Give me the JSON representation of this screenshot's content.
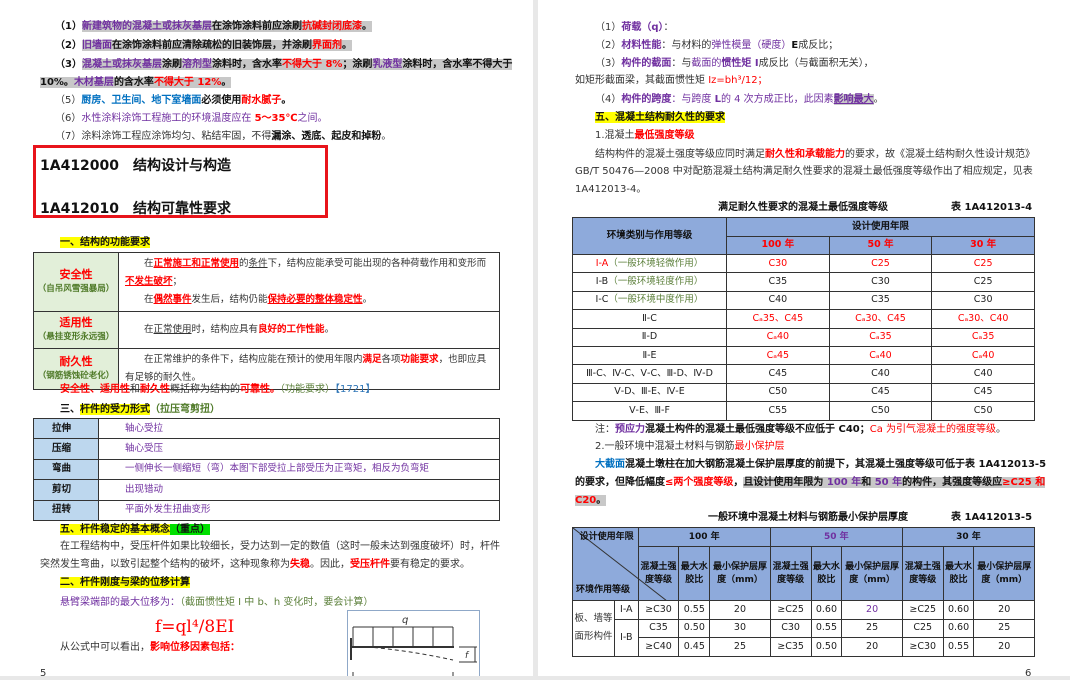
{
  "left": {
    "lines": [
      [
        {
          "t": "（1）",
          "s": "k"
        },
        {
          "t": "新建筑物的混凝土或抹灰基层",
          "s": "p hl"
        },
        {
          "t": "在涂饰涂料前应涂刷",
          "s": "k hl"
        },
        {
          "t": "抗碱封闭底漆",
          "s": "r hl"
        },
        {
          "t": "。",
          "s": "k hl"
        }
      ],
      [
        {
          "t": "（2）",
          "s": "k"
        },
        {
          "t": "旧墙面",
          "s": "p hl"
        },
        {
          "t": "在涂饰涂料前应清除疏松的旧装饰层，并涂刷",
          "s": "k hl"
        },
        {
          "t": "界面剂",
          "s": "r hl"
        },
        {
          "t": "。",
          "s": "k hl"
        }
      ],
      [
        {
          "t": "（3）",
          "s": "k"
        },
        {
          "t": "混凝土或抹灰基层",
          "s": "p hl"
        },
        {
          "t": "涂刷",
          "s": "k hl"
        },
        {
          "t": "溶剂型",
          "s": "p hl"
        },
        {
          "t": "涂料时，含水率",
          "s": "k hl"
        },
        {
          "t": "不得大于 8%",
          "s": "r hl"
        },
        {
          "t": "；涂刷",
          "s": "k hl"
        },
        {
          "t": "乳液型",
          "s": "p hl"
        },
        {
          "t": "涂料时，含水率不得大于",
          "s": "k hl"
        }
      ],
      [
        {
          "t": "10%。",
          "s": "k hl"
        },
        {
          "t": "木材基层",
          "s": "p hl"
        },
        {
          "t": "的含水率",
          "s": "k hl"
        },
        {
          "t": "不得大于 12%",
          "s": "r hl"
        },
        {
          "t": "。",
          "s": "k hl"
        }
      ],
      [
        {
          "t": "（5）",
          "s": "n"
        },
        {
          "t": "厨房、卫生间、地下室墙面",
          "s": "bl"
        },
        {
          "t": "必须使用",
          "s": "k"
        },
        {
          "t": "耐水腻子",
          "s": "r"
        },
        {
          "t": "。",
          "s": "k"
        }
      ],
      [
        {
          "t": "（6）",
          "s": "n"
        },
        {
          "t": "水性涂料涂饰工程施工的环境温度应在 ",
          "s": "pp"
        },
        {
          "t": "5～35℃",
          "s": "r"
        },
        {
          "t": "之间。",
          "s": "pp"
        }
      ],
      [
        {
          "t": "（7）涂料涂饰工程应涂饰均匀、粘结牢固，不得",
          "s": "n"
        },
        {
          "t": "漏涂、透底、起皮和掉粉",
          "s": "k"
        },
        {
          "t": "。",
          "s": "n"
        }
      ]
    ],
    "heading1": "1A412000　结构设计与构造",
    "heading2": "1A412010　结构可靠性要求",
    "sec1": [
      {
        "t": "一、结构的功能要求",
        "s": "k y"
      }
    ],
    "table1": [
      {
        "label": "安全性",
        "sub": "（自吊风雪强暴局）",
        "content": [
          {
            "t": "　　在",
            "s": "n"
          },
          {
            "t": "正常施工和正常使用",
            "s": "r u"
          },
          {
            "t": "的",
            "s": "n"
          },
          {
            "t": "条件",
            "s": "n u"
          },
          {
            "t": "下，结构应能承受可能出现的各种荷载作用和变形而",
            "s": "n"
          },
          {
            "t": "不发生破坏",
            "s": "r u"
          },
          {
            "t": "；",
            "s": "n"
          },
          {
            "t": "\n　　在",
            "s": "n"
          },
          {
            "t": "偶然事件",
            "s": "r u"
          },
          {
            "t": "发生后，结构仍能",
            "s": "n"
          },
          {
            "t": "保持必要的整体稳定性",
            "s": "r u"
          },
          {
            "t": "。",
            "s": "n"
          }
        ]
      },
      {
        "label": "适用性",
        "sub": "（悬挂变形永远强）",
        "content": [
          {
            "t": "　　在",
            "s": "n"
          },
          {
            "t": "正常使用",
            "s": "n u"
          },
          {
            "t": "时，结构应具有",
            "s": "n"
          },
          {
            "t": "良好的工作性能",
            "s": "r"
          },
          {
            "t": "。",
            "s": "n"
          }
        ]
      },
      {
        "label": "耐久性",
        "sub": "（钢筋锈蚀砼老化）",
        "content": [
          {
            "t": "　　在正常维护的条件下，结构应能在预计的使用年限内",
            "s": "n"
          },
          {
            "t": "满足",
            "s": "r"
          },
          {
            "t": "各项",
            "s": "n"
          },
          {
            "t": "功能要求",
            "s": "r"
          },
          {
            "t": "，也即应具有足够的耐久性。",
            "s": "n"
          }
        ]
      }
    ],
    "summary": [
      {
        "t": "安全性、适用性",
        "s": "r"
      },
      {
        "t": "和",
        "s": "n"
      },
      {
        "t": "耐久性",
        "s": "r"
      },
      {
        "t": "概括称为结构的",
        "s": "n"
      },
      {
        "t": "可靠性。",
        "s": "r"
      },
      {
        "t": "（功能要求）",
        "s": "g"
      },
      {
        "t": "【1721】",
        "s": "blp"
      }
    ],
    "sec3": [
      {
        "t": "三、",
        "s": "k"
      },
      {
        "t": "杆件的受力形式",
        "s": "k y"
      },
      {
        "t": "（拉压弯剪扭）",
        "s": "gb"
      }
    ],
    "table2": [
      {
        "label": "拉伸",
        "content": "轴心受拉"
      },
      {
        "label": "压缩",
        "content": "轴心受压"
      },
      {
        "label": "弯曲",
        "content": "一侧伸长一侧缩短（弯）本图下部受拉上部受压为正弯矩，相反为负弯矩"
      },
      {
        "label": "剪切",
        "content": "出现错动"
      },
      {
        "label": "扭转",
        "content": "平面外发生扭曲变形"
      }
    ],
    "sec5": [
      {
        "t": "五、杆件稳定的基本概念",
        "s": "k y"
      },
      {
        "t": "（重点）",
        "s": "k gr"
      }
    ],
    "para1": [
      {
        "t": "在工程结构中，受压杆件如果比较细长，受力达到一定的数值（这时一般未达到强度破坏）时，杆件",
        "s": "n"
      }
    ],
    "para2": [
      {
        "t": "突然发生弯曲，以致引起整个结构的破坏，这种现象称为",
        "s": "n"
      },
      {
        "t": "失稳",
        "s": "r"
      },
      {
        "t": "。因此，",
        "s": "n"
      },
      {
        "t": "受压杆件",
        "s": "r"
      },
      {
        "t": "要有稳定的要求。",
        "s": "n"
      }
    ],
    "sec2": [
      {
        "t": "二、杆件刚度与梁的位移计算",
        "s": "k y"
      }
    ],
    "beam": [
      {
        "t": "悬臂梁端部的最大位移为：",
        "s": "pp"
      },
      {
        "t": "（截面惯性矩 I 中 b、h 变化时，要会计算）",
        "s": "g"
      }
    ],
    "formula": "f=ql⁴/8EI",
    "conclusion": [
      {
        "t": "从公式中可以看出，",
        "s": "n"
      },
      {
        "t": "影响位移因素包括：",
        "s": "r"
      }
    ],
    "diagram": {
      "load_label": "q",
      "deflection_label": "f"
    },
    "page_number": "5"
  },
  "right": {
    "lines": [
      [
        {
          "t": "（1）",
          "s": "n"
        },
        {
          "t": "荷载（q）",
          "s": "p"
        },
        {
          "t": "：",
          "s": "n"
        }
      ],
      [
        {
          "t": "（2）",
          "s": "n"
        },
        {
          "t": "材料性能",
          "s": "p"
        },
        {
          "t": "：与材料的",
          "s": "n"
        },
        {
          "t": "弹性模量（硬度）",
          "s": "pp"
        },
        {
          "t": "E",
          "s": "k"
        },
        {
          "t": "成反比；",
          "s": "n"
        }
      ],
      [
        {
          "t": "（3）",
          "s": "n"
        },
        {
          "t": "构件的截面",
          "s": "p"
        },
        {
          "t": "：与",
          "s": "n"
        },
        {
          "t": "截面的",
          "s": "pp"
        },
        {
          "t": "惯性矩 I",
          "s": "p"
        },
        {
          "t": "成反比（与截面积无关），",
          "s": "n"
        }
      ],
      [
        {
          "t": "如矩形截面梁，其截面惯性矩 ",
          "s": "n"
        },
        {
          "t": "Iz=bh³/12；",
          "s": "rp"
        }
      ],
      [
        {
          "t": "（4）",
          "s": "n"
        },
        {
          "t": "构件的跨度",
          "s": "p"
        },
        {
          "t": "：与跨度 ",
          "s": "pp"
        },
        {
          "t": "L",
          "s": "p"
        },
        {
          "t": "的 4 次方成正比，此因素",
          "s": "pp"
        },
        {
          "t": "影响最大",
          "s": "p hl u"
        },
        {
          "t": "。",
          "s": "n"
        }
      ],
      [
        {
          "t": "五、混凝土结构耐久性的要求",
          "s": "k y"
        }
      ],
      [
        {
          "t": "1.混凝土",
          "s": "n"
        },
        {
          "t": "最低强度等级",
          "s": "r"
        }
      ],
      [
        {
          "t": "结构构件的混凝土强度等级应同时满足",
          "s": "n"
        },
        {
          "t": "耐久性和承载能力",
          "s": "r"
        },
        {
          "t": "的要求，故《混凝土结构耐久性设计规范》",
          "s": "n"
        }
      ],
      [
        {
          "t": "GB/T 50476—2008 中对配筋混凝土结构满足耐久性要求的混凝土最低强度等级作出了相应规定，见表",
          "s": "n"
        }
      ],
      [
        {
          "t": "1A412013-4。",
          "s": "n"
        }
      ]
    ],
    "table3": {
      "title": "满足耐久性要求的混凝土最低强度等级",
      "number": "表 1A412013-4",
      "col0": "环境类别与作用等级",
      "group": "设计使用年限",
      "years": [
        "100 年",
        "50 年",
        "30 年"
      ],
      "rows": [
        {
          "env": "Ⅰ-A",
          "note": "（一般环境轻微作用）",
          "vals": [
            "C30",
            "C25",
            "C25"
          ],
          "red": true,
          "envred": true
        },
        {
          "env": "Ⅰ-B",
          "note": "（一般环境轻度作用）",
          "vals": [
            "C35",
            "C30",
            "C25"
          ],
          "red": false
        },
        {
          "env": "Ⅰ-C",
          "note": "（一般环境中度作用）",
          "vals": [
            "C40",
            "C35",
            "C30"
          ],
          "red": false
        },
        {
          "env": "Ⅱ-C",
          "note": "",
          "vals": [
            "Cₐ35、C45",
            "Cₐ30、C45",
            "Cₐ30、C40"
          ],
          "red": true
        },
        {
          "env": "Ⅱ-D",
          "note": "",
          "vals": [
            "Cₐ40",
            "Cₐ35",
            "Cₐ35"
          ],
          "red": true
        },
        {
          "env": "Ⅱ-E",
          "note": "",
          "vals": [
            "Cₐ45",
            "Cₐ40",
            "Cₐ40"
          ],
          "red": true
        },
        {
          "env": "Ⅲ-C、Ⅳ-C、Ⅴ-C、Ⅲ-D、Ⅳ-D",
          "note": "",
          "vals": [
            "C45",
            "C40",
            "C40"
          ],
          "red": false
        },
        {
          "env": "Ⅴ-D、Ⅲ-E、Ⅳ-E",
          "note": "",
          "vals": [
            "C50",
            "C45",
            "C45"
          ],
          "red": false
        },
        {
          "env": "Ⅴ-E、Ⅲ-F",
          "note": "",
          "vals": [
            "C55",
            "C50",
            "C50"
          ],
          "red": false
        }
      ]
    },
    "note": [
      {
        "t": "注：",
        "s": "n"
      },
      {
        "t": "预应力",
        "s": "p"
      },
      {
        "t": "混凝土构件的混凝土最低强度等级不应低于 C40；",
        "s": "k"
      },
      {
        "t": "Ca 为引气混凝土的强度等级",
        "s": "rp"
      },
      {
        "t": "。",
        "s": "n"
      }
    ],
    "item2": [
      {
        "t": "2.一般环境中混凝土材料与钢筋",
        "s": "n"
      },
      {
        "t": "最小保护层",
        "s": "rp"
      }
    ],
    "para1": [
      {
        "t": "大截面",
        "s": "bl"
      },
      {
        "t": "混凝土墩柱在加大钢筋混凝土保护层厚度的前提下，其混凝土强度等级可低于表 1A412013-5",
        "s": "k"
      }
    ],
    "para2": [
      {
        "t": "的要求，但降低幅度",
        "s": "k"
      },
      {
        "t": "≤两个强度等级",
        "s": "r"
      },
      {
        "t": "，",
        "s": "k"
      },
      {
        "t": "且设计使用年限为 ",
        "s": "k hl"
      },
      {
        "t": "100 年",
        "s": "p hl"
      },
      {
        "t": "和 ",
        "s": "k hl"
      },
      {
        "t": "50 年",
        "s": "p hl"
      },
      {
        "t": "的构件，其强度等级应",
        "s": "k hl"
      },
      {
        "t": "≥C25 和",
        "s": "r hl"
      }
    ],
    "para3": [
      {
        "t": "C20",
        "s": "r hl"
      },
      {
        "t": "。",
        "s": "k hl"
      }
    ],
    "table4": {
      "title": "一般环境中混凝土材料与钢筋最小保护层厚度",
      "number": "表 1A412013-5",
      "corner_top": "设计使用年限",
      "corner_bottom": "环境作用等级",
      "years": [
        "100 年",
        "50 年",
        "30 年"
      ],
      "subheads": [
        "混凝土强度等级",
        "最大水胶比",
        "最小保护层厚度（mm）"
      ],
      "member": "板、墙等面形构件",
      "rows": [
        {
          "env": "Ⅰ-A",
          "vals": [
            "≥C30",
            "0.55",
            "20",
            "≥C25",
            "0.60",
            "20",
            "≥C25",
            "0.60",
            "20"
          ]
        },
        {
          "env": "Ⅰ-B",
          "vals": [
            "C35",
            "0.50",
            "30",
            "C30",
            "0.55",
            "25",
            "C25",
            "0.60",
            "25"
          ]
        },
        {
          "env": "",
          "vals": [
            "≥C40",
            "0.45",
            "25",
            "≥C35",
            "0.50",
            "20",
            "≥C30",
            "0.55",
            "20"
          ]
        }
      ]
    },
    "page_number": "6"
  },
  "colors": {
    "red": "#ff0000",
    "purple": "#7030a0",
    "table_header": "#8eaadb",
    "highlight_yellow": "#ffff00",
    "box_red": "#e8141b"
  }
}
